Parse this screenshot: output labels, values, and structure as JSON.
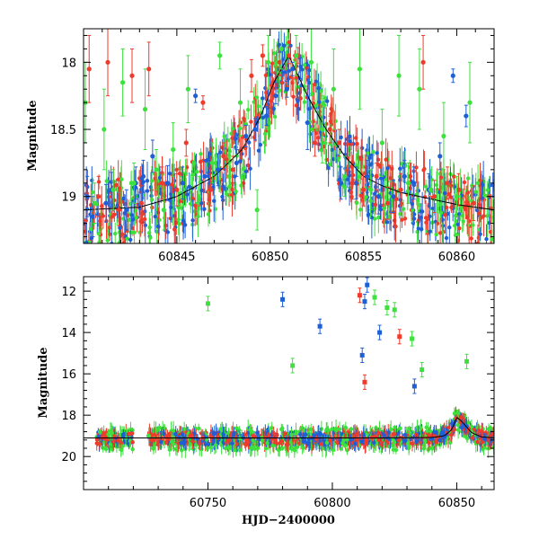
{
  "colors": {
    "blue": "#1f5fd6",
    "red": "#ef3b2c",
    "green": "#3de13d",
    "model": "#000000",
    "axes": "#000000"
  },
  "chart_data": [
    {
      "type": "scatter",
      "title": "",
      "xlabel": "",
      "ylabel": "Magnitude",
      "xlim": [
        60840,
        60862
      ],
      "ylim": [
        19.35,
        17.75
      ],
      "y_inverted": true,
      "grid": false,
      "x_ticks": [
        60845,
        60850,
        60855,
        60860
      ],
      "x_tick_labels": [
        "60845",
        "60850",
        "60855",
        "60860"
      ],
      "y_ticks": [
        18,
        18.5,
        19
      ],
      "y_tick_labels": [
        "18",
        "18.5",
        "19"
      ],
      "model_curve": {
        "x": [
          60840,
          60843,
          60845,
          60847,
          60848.5,
          60849.5,
          60850.2,
          60851,
          60852,
          60853,
          60854,
          60855,
          60856,
          60857,
          60858,
          60859,
          60860,
          60861,
          60862
        ],
        "y": [
          19.1,
          19.08,
          19.0,
          18.85,
          18.65,
          18.4,
          18.15,
          17.95,
          18.25,
          18.5,
          18.7,
          18.85,
          18.92,
          18.97,
          19.0,
          19.03,
          19.06,
          19.08,
          19.1
        ]
      },
      "series": [
        {
          "color_key": "blue",
          "x": [
            60840.2,
            60840.5,
            60841.2,
            60841.5,
            60842.3,
            60842.8,
            60843.2,
            60843.7,
            60844.5,
            60845.3,
            60846.0,
            60846.5,
            60847.2,
            60848.2,
            60848.7,
            60849.2,
            60849.8,
            60850.3,
            60850.9,
            60851.2,
            60852.0,
            60853.8,
            60854.6,
            60855.2,
            60855.8,
            60856.6,
            60857.2,
            60857.7,
            60858.5,
            60859.1,
            60859.8,
            60860.5
          ],
          "y": [
            19.0,
            19.15,
            19.05,
            18.95,
            19.1,
            18.9,
            18.85,
            18.7,
            18.9,
            18.9,
            18.25,
            18.85,
            18.8,
            18.75,
            18.55,
            18.5,
            18.4,
            18.25,
            18.2,
            18.05,
            18.45,
            18.9,
            18.9,
            18.85,
            19.0,
            19.0,
            18.85,
            18.9,
            18.95,
            18.7,
            18.1,
            18.4
          ],
          "err": [
            0.15,
            0.15,
            0.14,
            0.13,
            0.15,
            0.12,
            0.12,
            0.12,
            0.13,
            0.12,
            0.05,
            0.12,
            0.12,
            0.1,
            0.08,
            0.08,
            0.07,
            0.06,
            0.06,
            0.05,
            0.2,
            0.12,
            0.12,
            0.12,
            0.13,
            0.12,
            0.12,
            0.12,
            0.12,
            0.1,
            0.05,
            0.08
          ]
        },
        {
          "color_key": "red",
          "x": [
            60840.3,
            60840.8,
            60841.3,
            60841.9,
            60842.6,
            60843.1,
            60843.5,
            60844.2,
            60845.0,
            60845.5,
            60846.4,
            60846.8,
            60847.5,
            60848.0,
            60849.0,
            60849.6,
            60850.5,
            60851.0,
            60851.5,
            60852.4,
            60853.2,
            60853.7,
            60854.4,
            60855.0,
            60855.7,
            60856.3,
            60857.0,
            60857.5,
            60858.2,
            60858.8,
            60859.5,
            60860.1,
            60860.9
          ],
          "y": [
            18.05,
            19.0,
            18.0,
            19.1,
            18.1,
            19.05,
            18.05,
            18.9,
            18.95,
            18.6,
            18.3,
            18.95,
            18.7,
            18.8,
            18.1,
            17.95,
            18.0,
            17.95,
            17.95,
            18.6,
            18.5,
            18.6,
            18.9,
            18.95,
            18.85,
            19.05,
            18.95,
            18.85,
            18.0,
            19.0,
            18.9,
            18.95,
            19.05
          ],
          "err": [
            0.25,
            0.15,
            0.25,
            0.12,
            0.2,
            0.13,
            0.2,
            0.12,
            0.12,
            0.1,
            0.05,
            0.12,
            0.1,
            0.1,
            0.12,
            0.08,
            0.1,
            0.06,
            0.06,
            0.1,
            0.1,
            0.1,
            0.12,
            0.12,
            0.1,
            0.12,
            0.12,
            0.1,
            0.2,
            0.12,
            0.12,
            0.12,
            0.13
          ]
        },
        {
          "color_key": "green",
          "x": [
            60840.1,
            60840.6,
            60841.1,
            60841.6,
            60842.1,
            60842.7,
            60843.3,
            60843.9,
            60844.3,
            60844.8,
            60845.6,
            60846.2,
            60846.9,
            60847.3,
            60847.8,
            60848.4,
            60849.3,
            60849.9,
            60850.6,
            60851.4,
            60852.2,
            60852.8,
            60853.4,
            60854.0,
            60854.8,
            60855.4,
            60856.0,
            60856.9,
            60857.4,
            60858.0,
            60858.6,
            60859.3,
            60860.0,
            60860.7
          ],
          "y": [
            18.3,
            19.05,
            18.5,
            18.95,
            18.15,
            18.9,
            18.35,
            18.8,
            19.1,
            18.65,
            18.2,
            19.0,
            18.75,
            17.95,
            18.85,
            18.3,
            19.1,
            18.0,
            17.9,
            17.95,
            18.0,
            18.5,
            18.2,
            18.85,
            18.05,
            18.95,
            18.6,
            18.1,
            18.9,
            18.2,
            18.95,
            18.55,
            19.0,
            18.3
          ],
          "err": [
            0.3,
            0.15,
            0.3,
            0.15,
            0.25,
            0.15,
            0.3,
            0.15,
            0.15,
            0.2,
            0.25,
            0.15,
            0.15,
            0.1,
            0.15,
            0.25,
            0.15,
            0.2,
            0.15,
            0.15,
            0.25,
            0.25,
            0.3,
            0.15,
            0.3,
            0.15,
            0.25,
            0.3,
            0.15,
            0.3,
            0.15,
            0.25,
            0.15,
            0.3
          ]
        }
      ]
    },
    {
      "type": "scatter",
      "title": "",
      "xlabel": "HJD−2400000",
      "ylabel": "Magnitude",
      "xlim": [
        60700,
        60865
      ],
      "ylim": [
        21.6,
        11.3
      ],
      "y_inverted": true,
      "grid": false,
      "x_ticks": [
        60750,
        60800,
        60850
      ],
      "x_tick_labels": [
        "60750",
        "60800",
        "60850"
      ],
      "y_ticks": [
        12,
        14,
        16,
        18,
        20
      ],
      "y_tick_labels": [
        "12",
        "14",
        "16",
        "18",
        "20"
      ],
      "model_curve": {
        "x": [
          60700,
          60760,
          60820,
          60840,
          60845,
          60848,
          60850,
          60852,
          60856,
          60860,
          60865
        ],
        "y": [
          19.1,
          19.1,
          19.1,
          19.08,
          19.0,
          18.7,
          18.1,
          18.3,
          18.85,
          19.05,
          19.1
        ]
      },
      "outliers": [
        {
          "color_key": "green",
          "x": 60750,
          "y": 12.6
        },
        {
          "color_key": "blue",
          "x": 60780,
          "y": 12.4
        },
        {
          "color_key": "blue",
          "x": 60795,
          "y": 13.7
        },
        {
          "color_key": "red",
          "x": 60811,
          "y": 12.2
        },
        {
          "color_key": "blue",
          "x": 60813,
          "y": 12.5
        },
        {
          "color_key": "blue",
          "x": 60814,
          "y": 11.7
        },
        {
          "color_key": "green",
          "x": 60817,
          "y": 12.3
        },
        {
          "color_key": "blue",
          "x": 60819,
          "y": 14.0
        },
        {
          "color_key": "green",
          "x": 60822,
          "y": 12.8
        },
        {
          "color_key": "green",
          "x": 60825,
          "y": 12.9
        },
        {
          "color_key": "red",
          "x": 60827,
          "y": 14.2
        },
        {
          "color_key": "green",
          "x": 60832,
          "y": 14.3
        },
        {
          "color_key": "green",
          "x": 60836,
          "y": 15.8
        },
        {
          "color_key": "green",
          "x": 60854,
          "y": 15.4
        },
        {
          "color_key": "green",
          "x": 60784,
          "y": 15.6
        },
        {
          "color_key": "blue",
          "x": 60812,
          "y": 15.1
        },
        {
          "color_key": "red",
          "x": 60813,
          "y": 16.4
        },
        {
          "color_key": "blue",
          "x": 60833,
          "y": 16.6
        }
      ]
    }
  ]
}
